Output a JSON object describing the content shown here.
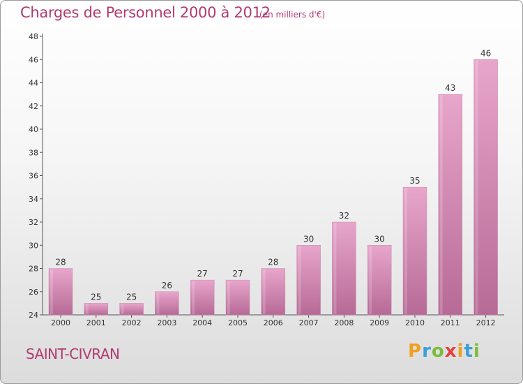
{
  "header": {
    "title": "Charges de Personnel 2000 à 2012",
    "subtitle": "(en milliers d'€)"
  },
  "footer": {
    "town": "SAINT-CIVRAN",
    "logo": "Proxiti"
  },
  "colors": {
    "title": "#b03a72",
    "bar_light": "#e8a6cb",
    "bar_dark": "#b66a96"
  },
  "chart_data": {
    "type": "bar",
    "title": "Charges de Personnel 2000 à 2012",
    "subtitle": "(en milliers d'€)",
    "xlabel": "",
    "ylabel": "",
    "categories": [
      "2000",
      "2001",
      "2002",
      "2003",
      "2004",
      "2005",
      "2006",
      "2007",
      "2008",
      "2009",
      "2010",
      "2011",
      "2012"
    ],
    "values": [
      28,
      25,
      25,
      26,
      27,
      27,
      28,
      30,
      32,
      30,
      35,
      43,
      46
    ],
    "ylim": [
      24,
      48
    ],
    "yticks": [
      24,
      26,
      28,
      30,
      32,
      34,
      36,
      38,
      40,
      42,
      44,
      46,
      48
    ],
    "grid": false,
    "legend": "none"
  }
}
